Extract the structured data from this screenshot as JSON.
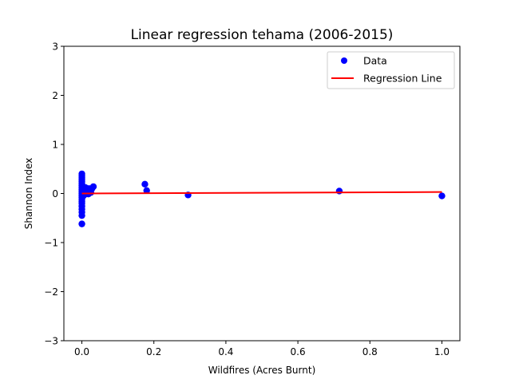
{
  "chart_data": {
    "type": "scatter",
    "title": "Linear regression tehama (2006-2015)",
    "xlabel": "Wildfires (Acres Burnt)",
    "ylabel": "Shannon Index",
    "xlim": [
      -0.05,
      1.05
    ],
    "ylim": [
      -3,
      3
    ],
    "x_ticks": [
      0.0,
      0.2,
      0.4,
      0.6,
      0.8,
      1.0
    ],
    "x_tick_labels": [
      "0.0",
      "0.2",
      "0.4",
      "0.6",
      "0.8",
      "1.0"
    ],
    "y_ticks": [
      -3,
      -2,
      -1,
      0,
      1,
      2,
      3
    ],
    "y_tick_labels": [
      "−3",
      "−2",
      "−1",
      "0",
      "1",
      "2",
      "3"
    ],
    "grid": false,
    "legend_position": "top-right",
    "series": [
      {
        "name": "Data",
        "kind": "scatter",
        "color": "#0000ff",
        "points": [
          [
            0.0,
            0.4
          ],
          [
            0.0,
            0.36
          ],
          [
            0.0,
            0.32
          ],
          [
            0.0,
            0.28
          ],
          [
            0.0,
            0.24
          ],
          [
            0.0,
            0.2
          ],
          [
            0.0,
            0.16
          ],
          [
            0.0,
            0.12
          ],
          [
            0.0,
            0.08
          ],
          [
            0.0,
            0.04
          ],
          [
            0.0,
            0.0
          ],
          [
            0.0,
            -0.04
          ],
          [
            0.0,
            -0.08
          ],
          [
            0.0,
            -0.12
          ],
          [
            0.0,
            -0.16
          ],
          [
            0.0,
            -0.2
          ],
          [
            0.0,
            -0.26
          ],
          [
            0.0,
            -0.32
          ],
          [
            0.0,
            -0.38
          ],
          [
            0.0,
            -0.45
          ],
          [
            0.0,
            -0.62
          ],
          [
            0.003,
            0.14
          ],
          [
            0.004,
            -0.05
          ],
          [
            0.005,
            0.1
          ],
          [
            0.006,
            0.05
          ],
          [
            0.008,
            -0.02
          ],
          [
            0.01,
            0.12
          ],
          [
            0.012,
            0.02
          ],
          [
            0.015,
            0.08
          ],
          [
            0.018,
            -0.01
          ],
          [
            0.02,
            0.1
          ],
          [
            0.022,
            0.05
          ],
          [
            0.025,
            0.02
          ],
          [
            0.028,
            0.1
          ],
          [
            0.032,
            0.14
          ],
          [
            0.175,
            0.19
          ],
          [
            0.18,
            0.06
          ],
          [
            0.295,
            -0.03
          ],
          [
            0.715,
            0.05
          ],
          [
            1.0,
            -0.05
          ]
        ]
      },
      {
        "name": "Regression Line",
        "kind": "line",
        "color": "#ff0000",
        "points": [
          [
            0.0,
            0.0
          ],
          [
            1.0,
            0.03
          ]
        ]
      }
    ]
  }
}
